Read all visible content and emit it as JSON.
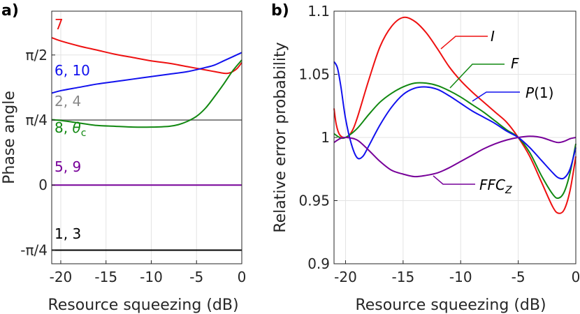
{
  "chart_data": [
    {
      "panel_label": "a)",
      "type": "line",
      "xlabel": "Resource squeezing (dB)",
      "ylabel": "Phase angle",
      "xlim": [
        -21,
        0
      ],
      "ylim": [
        -0.95,
        2.1
      ],
      "xticks": [
        -20,
        -15,
        -10,
        -5,
        0
      ],
      "xtick_labels": [
        "-20",
        "-15",
        "-10",
        "-5",
        "0"
      ],
      "yticks": [
        -0.7854,
        0,
        0.7854,
        1.5708
      ],
      "ytick_labels": [
        "-π/4",
        "0",
        "π/4",
        "π/2"
      ],
      "grid": true,
      "series": [
        {
          "name": "7",
          "color": "#ee1111",
          "x": [
            -21,
            -20,
            -18,
            -16,
            -14,
            -12,
            -10,
            -8,
            -6,
            -4,
            -3,
            -2,
            -1.5,
            -1,
            -0.5,
            0
          ],
          "y": [
            1.78,
            1.74,
            1.68,
            1.63,
            1.58,
            1.54,
            1.5,
            1.47,
            1.43,
            1.39,
            1.37,
            1.35,
            1.35,
            1.37,
            1.41,
            1.48
          ]
        },
        {
          "name": "6, 10",
          "color": "#1111ee",
          "x": [
            -21,
            -20,
            -18,
            -16,
            -14,
            -12,
            -10,
            -8,
            -6,
            -4,
            -3,
            -2,
            -1,
            0
          ],
          "y": [
            1.11,
            1.14,
            1.18,
            1.22,
            1.25,
            1.28,
            1.31,
            1.34,
            1.37,
            1.42,
            1.45,
            1.5,
            1.55,
            1.6
          ]
        },
        {
          "name": "2, 4",
          "color": "#888888",
          "x": [
            -21,
            0
          ],
          "y": [
            0.7854,
            0.7854
          ]
        },
        {
          "name": "8, θc",
          "color": "#118811",
          "x": [
            -21,
            -20,
            -18,
            -16,
            -14,
            -12,
            -10,
            -8,
            -7,
            -6,
            -5,
            -4,
            -3,
            -2,
            -1,
            0
          ],
          "y": [
            0.79,
            0.78,
            0.75,
            0.72,
            0.71,
            0.7,
            0.7,
            0.71,
            0.73,
            0.77,
            0.83,
            0.93,
            1.07,
            1.22,
            1.38,
            1.51
          ]
        },
        {
          "name": "5, 9",
          "color": "#770099",
          "x": [
            -21,
            0
          ],
          "y": [
            0,
            0
          ]
        },
        {
          "name": "1, 3",
          "color": "#000000",
          "x": [
            -21,
            0
          ],
          "y": [
            -0.7854,
            -0.7854
          ]
        }
      ]
    },
    {
      "panel_label": "b)",
      "type": "line",
      "xlabel": "Resource squeezing (dB)",
      "ylabel": "Relative error probability",
      "xlim": [
        -21,
        0
      ],
      "ylim": [
        0.9,
        1.1
      ],
      "xticks": [
        -20,
        -15,
        -10,
        -5,
        0
      ],
      "xtick_labels": [
        "-20",
        "-15",
        "-10",
        "-5",
        "0"
      ],
      "yticks": [
        0.9,
        0.95,
        1.0,
        1.05,
        1.1
      ],
      "ytick_labels": [
        "0.9",
        "0.95",
        "1",
        "1.05",
        "1.1"
      ],
      "grid": true,
      "series": [
        {
          "name": "I",
          "color": "#ee1111",
          "x": [
            -21,
            -20.8,
            -20.5,
            -20,
            -19.5,
            -19,
            -18,
            -17,
            -16,
            -15,
            -14,
            -13,
            -12,
            -11,
            -10,
            -9,
            -8,
            -7,
            -6,
            -5,
            -4,
            -3,
            -2,
            -1.5,
            -1,
            -0.5,
            0
          ],
          "y": [
            1.023,
            1.01,
            1.002,
            1.0,
            1.004,
            1.015,
            1.045,
            1.072,
            1.088,
            1.095,
            1.092,
            1.083,
            1.07,
            1.056,
            1.045,
            1.036,
            1.028,
            1.02,
            1.012,
            1.0,
            0.985,
            0.965,
            0.945,
            0.94,
            0.943,
            0.958,
            0.985
          ]
        },
        {
          "name": "F",
          "color": "#118811",
          "x": [
            -21,
            -20.5,
            -20,
            -19,
            -18,
            -17,
            -16,
            -15,
            -14,
            -13,
            -12,
            -11,
            -10,
            -9,
            -8,
            -7,
            -6,
            -5,
            -4,
            -3,
            -2,
            -1.5,
            -1,
            -0.5,
            0
          ],
          "y": [
            1.003,
            1.0,
            1.0,
            1.007,
            1.018,
            1.028,
            1.035,
            1.04,
            1.043,
            1.043,
            1.041,
            1.037,
            1.032,
            1.026,
            1.02,
            1.013,
            1.006,
            1.0,
            0.988,
            0.97,
            0.955,
            0.952,
            0.957,
            0.972,
            0.995
          ]
        },
        {
          "name": "P(1)",
          "color": "#1111ee",
          "x": [
            -21,
            -20.7,
            -20.4,
            -20,
            -19.5,
            -19,
            -18.5,
            -18,
            -17,
            -16,
            -15,
            -14,
            -13,
            -12,
            -11,
            -10,
            -9,
            -8,
            -7,
            -6,
            -5,
            -4,
            -3,
            -2,
            -1.5,
            -1,
            -0.5,
            0
          ],
          "y": [
            1.06,
            1.055,
            1.04,
            1.015,
            0.995,
            0.984,
            0.985,
            0.993,
            1.01,
            1.024,
            1.034,
            1.039,
            1.04,
            1.038,
            1.033,
            1.027,
            1.021,
            1.016,
            1.011,
            1.005,
            1.0,
            0.992,
            0.982,
            0.972,
            0.968,
            0.968,
            0.975,
            0.992
          ]
        },
        {
          "name": "FFC_Z",
          "color": "#770099",
          "x": [
            -21,
            -20.5,
            -20,
            -19,
            -18,
            -17,
            -16,
            -15,
            -14,
            -13,
            -12,
            -11,
            -10,
            -9,
            -8,
            -7,
            -6,
            -5,
            -4,
            -3,
            -2,
            -1.5,
            -1,
            -0.5,
            0
          ],
          "y": [
            0.996,
            0.999,
            1.0,
            0.998,
            0.99,
            0.981,
            0.974,
            0.971,
            0.969,
            0.97,
            0.972,
            0.976,
            0.981,
            0.986,
            0.991,
            0.995,
            0.998,
            1.0,
            1.001,
            1.0,
            0.997,
            0.996,
            0.997,
            0.999,
            1.0
          ]
        }
      ]
    }
  ]
}
